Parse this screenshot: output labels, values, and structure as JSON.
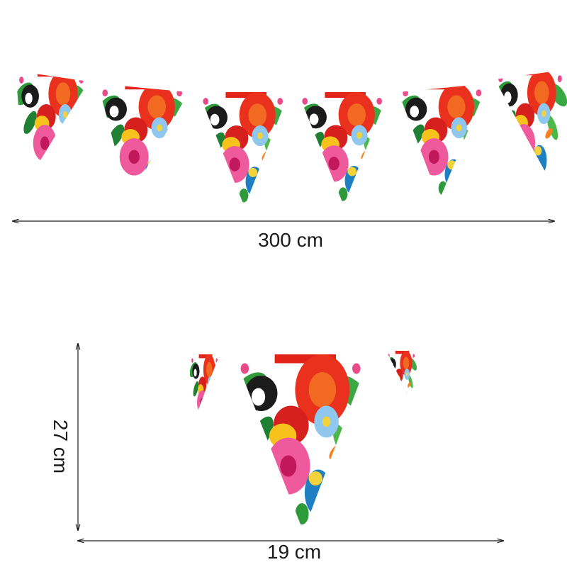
{
  "dimensions": {
    "length": "300 cm",
    "height": "27 cm",
    "width": "19 cm"
  }
}
